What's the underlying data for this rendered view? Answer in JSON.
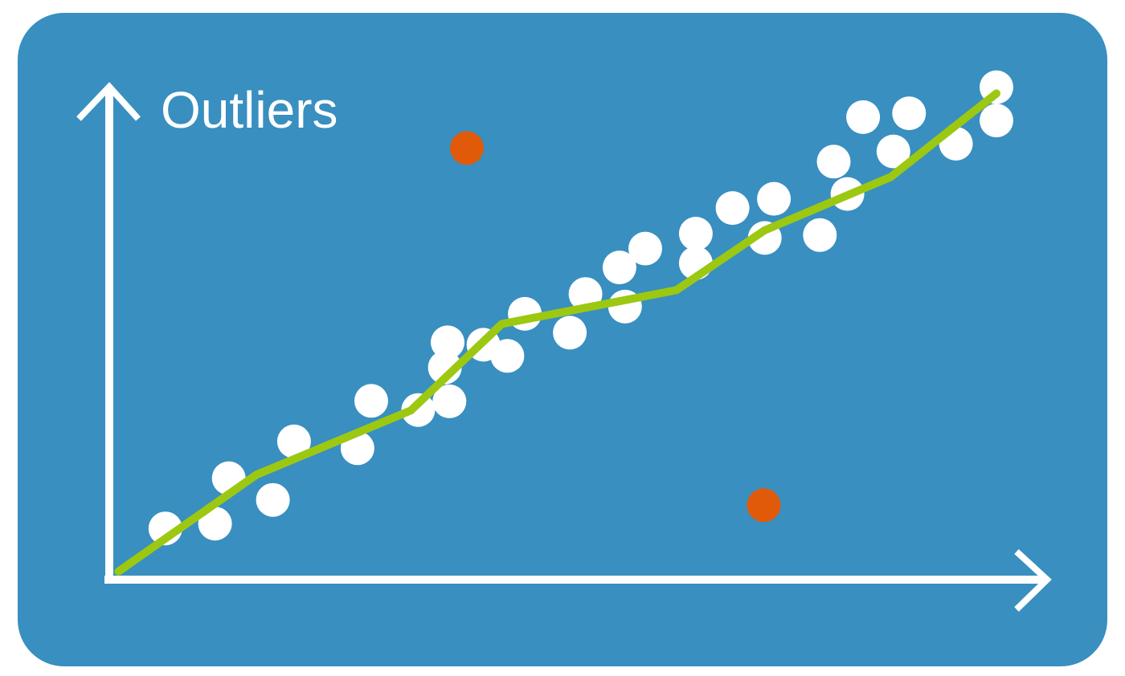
{
  "chart_data": {
    "type": "scatter",
    "title": "Outliers",
    "xlabel": "",
    "ylabel": "",
    "xlim": [
      0,
      100
    ],
    "ylim": [
      0,
      100
    ],
    "grid": false,
    "legend": "none",
    "points": [
      {
        "x": 6.1,
        "y": 10.6
      },
      {
        "x": 11.5,
        "y": 11.6
      },
      {
        "x": 13.0,
        "y": 21.0
      },
      {
        "x": 17.8,
        "y": 16.5
      },
      {
        "x": 20.1,
        "y": 28.6
      },
      {
        "x": 27.0,
        "y": 27.2
      },
      {
        "x": 28.5,
        "y": 37.0
      },
      {
        "x": 33.6,
        "y": 35.1
      },
      {
        "x": 36.8,
        "y": 49.1
      },
      {
        "x": 36.5,
        "y": 43.9
      },
      {
        "x": 37.0,
        "y": 36.9
      },
      {
        "x": 40.7,
        "y": 48.6
      },
      {
        "x": 43.3,
        "y": 46.3
      },
      {
        "x": 45.2,
        "y": 55.0
      },
      {
        "x": 50.1,
        "y": 51.1
      },
      {
        "x": 51.8,
        "y": 59.1
      },
      {
        "x": 55.5,
        "y": 64.6
      },
      {
        "x": 56.1,
        "y": 56.5
      },
      {
        "x": 58.3,
        "y": 68.5
      },
      {
        "x": 63.8,
        "y": 71.6
      },
      {
        "x": 63.8,
        "y": 65.5
      },
      {
        "x": 67.8,
        "y": 76.9
      },
      {
        "x": 71.3,
        "y": 70.7
      },
      {
        "x": 72.3,
        "y": 78.8
      },
      {
        "x": 77.3,
        "y": 71.3
      },
      {
        "x": 78.8,
        "y": 86.5
      },
      {
        "x": 80.3,
        "y": 79.8
      },
      {
        "x": 82.0,
        "y": 95.7
      },
      {
        "x": 85.3,
        "y": 88.6
      },
      {
        "x": 87.0,
        "y": 96.5
      },
      {
        "x": 92.1,
        "y": 90.2
      },
      {
        "x": 96.5,
        "y": 101.9
      },
      {
        "x": 96.5,
        "y": 95.0
      }
    ],
    "outliers": [
      {
        "x": 38.9,
        "y": 89.3
      },
      {
        "x": 71.2,
        "y": 15.4
      }
    ],
    "trend_line": [
      {
        "x": 1.0,
        "y": 1.7
      },
      {
        "x": 16.0,
        "y": 21.7
      },
      {
        "x": 32.8,
        "y": 35.0
      },
      {
        "x": 42.7,
        "y": 52.9
      },
      {
        "x": 61.7,
        "y": 59.9
      },
      {
        "x": 71.3,
        "y": 72.3
      },
      {
        "x": 85.0,
        "y": 83.3
      },
      {
        "x": 96.5,
        "y": 100.6
      }
    ],
    "colors": {
      "background": "#388fc0",
      "points": "#ffffff",
      "outliers": "#e05a0a",
      "trend_line": "#9cc812",
      "axes": "#ffffff"
    }
  }
}
